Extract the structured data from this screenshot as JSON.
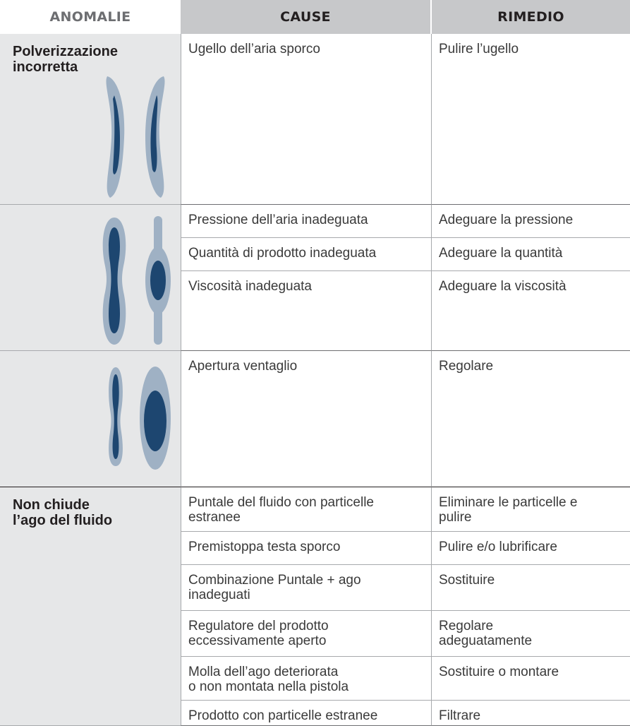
{
  "table": {
    "header": [
      "ANOMALIE",
      "CAUSE",
      "RIMEDIO"
    ],
    "groups": [
      {
        "anomaly": "Polverizzazione\nincorretta",
        "rows": [
          [
            "Ugello dell’aria sporco",
            "Pulire l’ugello"
          ]
        ]
      },
      {
        "rows": [
          [
            "Pressione dell’aria inadeguata",
            "Adeguare la pressione"
          ],
          [
            "Quantità di prodotto inadeguata",
            "Adeguare la quantità"
          ],
          [
            "Viscosità inadeguata",
            "Adeguare la viscosità"
          ]
        ]
      },
      {
        "rows": [
          [
            "Apertura ventaglio",
            "Regolare"
          ]
        ]
      },
      {
        "anomaly": "Non chiude\nl’ago del fluido",
        "rows": [
          [
            "Puntale del fluido con particelle\nestranee",
            "Eliminare le particelle e\npulire"
          ],
          [
            "Premistoppa testa sporco",
            "Pulire e/o lubrificare"
          ],
          [
            "Combinazione Puntale + ago\ninadeguati",
            "Sostituire"
          ],
          [
            "Regulatore del prodotto\neccessivamente aperto",
            "Regolare\nadeguatamente"
          ],
          [
            "Molla dell’ago deteriorata\no non montata nella pistola",
            "Sostituire o montare"
          ],
          [
            "Prodotto con particelle estranee",
            "Filtrare"
          ]
        ]
      }
    ]
  }
}
